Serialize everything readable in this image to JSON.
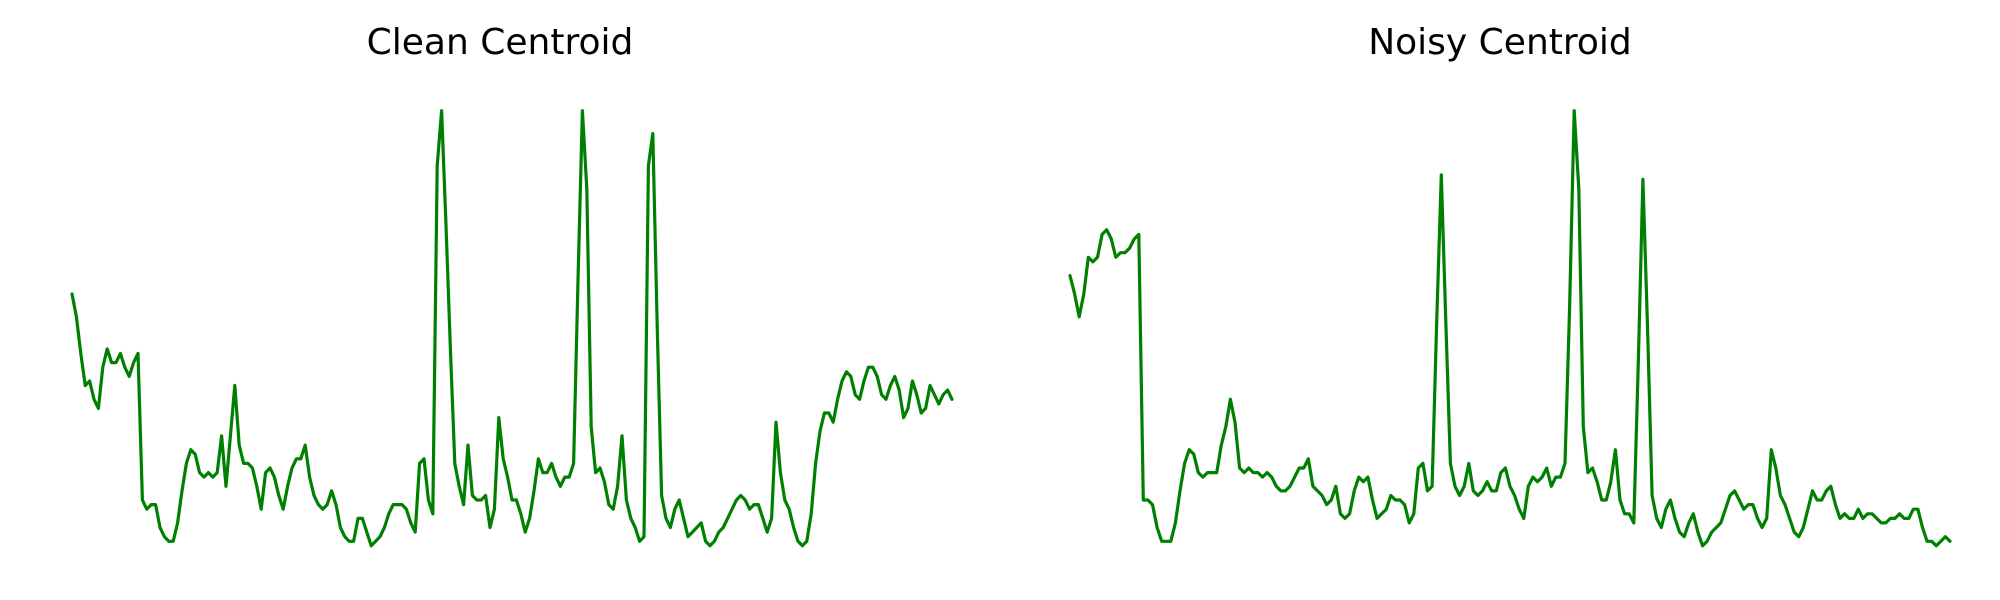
{
  "chart_data": [
    {
      "type": "line",
      "title": "Clean Centroid",
      "xlabel": "",
      "ylabel": "",
      "axes_visible": false,
      "grid": false,
      "color": "#008000",
      "ylim": [
        0.0,
        1.0
      ],
      "values": [
        0.57,
        0.52,
        0.44,
        0.37,
        0.38,
        0.34,
        0.32,
        0.41,
        0.45,
        0.42,
        0.42,
        0.44,
        0.41,
        0.39,
        0.42,
        0.44,
        0.12,
        0.1,
        0.11,
        0.11,
        0.06,
        0.04,
        0.03,
        0.03,
        0.07,
        0.14,
        0.2,
        0.23,
        0.22,
        0.18,
        0.17,
        0.18,
        0.17,
        0.18,
        0.26,
        0.15,
        0.26,
        0.37,
        0.24,
        0.2,
        0.2,
        0.19,
        0.15,
        0.1,
        0.18,
        0.19,
        0.17,
        0.13,
        0.1,
        0.15,
        0.19,
        0.21,
        0.21,
        0.24,
        0.17,
        0.13,
        0.11,
        0.1,
        0.11,
        0.14,
        0.11,
        0.06,
        0.04,
        0.03,
        0.03,
        0.08,
        0.08,
        0.05,
        0.02,
        0.03,
        0.04,
        0.06,
        0.09,
        0.11,
        0.11,
        0.11,
        0.1,
        0.07,
        0.05,
        0.2,
        0.21,
        0.12,
        0.09,
        0.85,
        0.97,
        0.72,
        0.45,
        0.2,
        0.15,
        0.11,
        0.24,
        0.13,
        0.12,
        0.12,
        0.13,
        0.06,
        0.1,
        0.3,
        0.21,
        0.17,
        0.12,
        0.12,
        0.09,
        0.05,
        0.08,
        0.14,
        0.21,
        0.18,
        0.18,
        0.2,
        0.17,
        0.15,
        0.17,
        0.17,
        0.2,
        0.6,
        0.97,
        0.8,
        0.28,
        0.18,
        0.19,
        0.16,
        0.11,
        0.1,
        0.15,
        0.26,
        0.12,
        0.08,
        0.06,
        0.03,
        0.04,
        0.85,
        0.92,
        0.5,
        0.13,
        0.08,
        0.06,
        0.1,
        0.12,
        0.08,
        0.04,
        0.05,
        0.06,
        0.07,
        0.03,
        0.02,
        0.03,
        0.05,
        0.06,
        0.08,
        0.1,
        0.12,
        0.13,
        0.12,
        0.1,
        0.11,
        0.11,
        0.08,
        0.05,
        0.08,
        0.29,
        0.18,
        0.12,
        0.1,
        0.06,
        0.03,
        0.02,
        0.03,
        0.09,
        0.2,
        0.27,
        0.31,
        0.31,
        0.29,
        0.34,
        0.38,
        0.4,
        0.39,
        0.35,
        0.34,
        0.38,
        0.41,
        0.41,
        0.39,
        0.35,
        0.34,
        0.37,
        0.39,
        0.36,
        0.3,
        0.32,
        0.38,
        0.35,
        0.31,
        0.32,
        0.37,
        0.35,
        0.33,
        0.35,
        0.36,
        0.34
      ]
    },
    {
      "type": "line",
      "title": "Noisy Centroid",
      "xlabel": "",
      "ylabel": "",
      "axes_visible": false,
      "grid": false,
      "color": "#008000",
      "ylim": [
        0.0,
        1.0
      ],
      "values": [
        0.61,
        0.57,
        0.52,
        0.57,
        0.65,
        0.64,
        0.65,
        0.7,
        0.71,
        0.69,
        0.65,
        0.66,
        0.66,
        0.67,
        0.69,
        0.7,
        0.12,
        0.12,
        0.11,
        0.06,
        0.03,
        0.03,
        0.03,
        0.07,
        0.14,
        0.2,
        0.23,
        0.22,
        0.18,
        0.17,
        0.18,
        0.18,
        0.18,
        0.24,
        0.28,
        0.34,
        0.29,
        0.19,
        0.18,
        0.19,
        0.18,
        0.18,
        0.17,
        0.18,
        0.17,
        0.15,
        0.14,
        0.14,
        0.15,
        0.17,
        0.19,
        0.19,
        0.21,
        0.15,
        0.14,
        0.13,
        0.11,
        0.12,
        0.15,
        0.09,
        0.08,
        0.09,
        0.14,
        0.17,
        0.16,
        0.17,
        0.12,
        0.08,
        0.09,
        0.1,
        0.13,
        0.12,
        0.12,
        0.11,
        0.07,
        0.09,
        0.19,
        0.2,
        0.14,
        0.15,
        0.51,
        0.83,
        0.51,
        0.2,
        0.15,
        0.13,
        0.15,
        0.2,
        0.14,
        0.13,
        0.14,
        0.16,
        0.14,
        0.14,
        0.18,
        0.19,
        0.15,
        0.13,
        0.1,
        0.08,
        0.15,
        0.17,
        0.16,
        0.17,
        0.19,
        0.15,
        0.17,
        0.17,
        0.2,
        0.54,
        0.97,
        0.8,
        0.28,
        0.18,
        0.19,
        0.16,
        0.12,
        0.12,
        0.16,
        0.23,
        0.12,
        0.09,
        0.09,
        0.07,
        0.42,
        0.82,
        0.5,
        0.13,
        0.08,
        0.06,
        0.1,
        0.12,
        0.08,
        0.05,
        0.04,
        0.07,
        0.09,
        0.05,
        0.02,
        0.03,
        0.05,
        0.06,
        0.07,
        0.1,
        0.13,
        0.14,
        0.12,
        0.1,
        0.11,
        0.11,
        0.08,
        0.06,
        0.08,
        0.23,
        0.19,
        0.13,
        0.11,
        0.08,
        0.05,
        0.04,
        0.06,
        0.1,
        0.14,
        0.12,
        0.12,
        0.14,
        0.15,
        0.11,
        0.08,
        0.09,
        0.08,
        0.08,
        0.1,
        0.08,
        0.09,
        0.09,
        0.08,
        0.07,
        0.07,
        0.08,
        0.08,
        0.09,
        0.08,
        0.08,
        0.1,
        0.1,
        0.06,
        0.03,
        0.03,
        0.02,
        0.03,
        0.04,
        0.03
      ]
    }
  ]
}
